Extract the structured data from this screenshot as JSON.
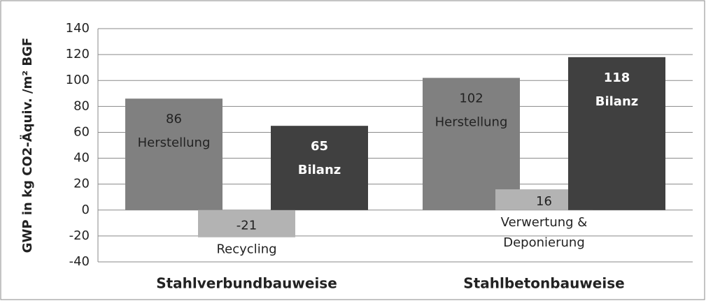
{
  "chart_data": {
    "type": "bar",
    "y_label": "GWP in kg CO2-Äquiv. /m² BGF",
    "categories": [
      "Stahlverbundbauweise",
      "Stahlbetonbauweise"
    ],
    "series": [
      {
        "name": "Herstellung",
        "color": "#808080",
        "values": [
          86,
          102
        ]
      },
      {
        "point_labels": [
          [
            "Recycling"
          ],
          [
            "Verwertung &",
            "Deponierung"
          ]
        ],
        "color": "#b3b3b3",
        "values": [
          -21,
          16
        ]
      },
      {
        "name": "Bilanz",
        "color": "#404040",
        "values": [
          65,
          118
        ]
      }
    ],
    "ylim": [
      -40,
      140
    ],
    "yticks": [
      -40,
      -20,
      0,
      20,
      40,
      60,
      80,
      100,
      120,
      140
    ],
    "grid": true
  }
}
